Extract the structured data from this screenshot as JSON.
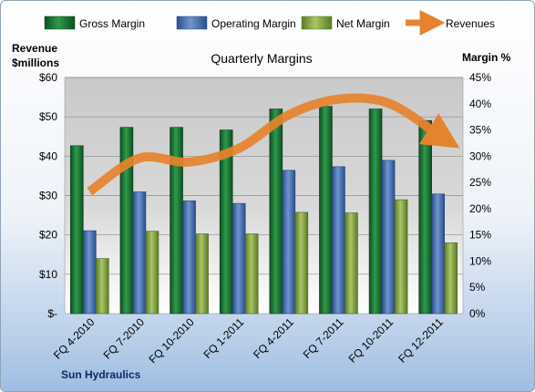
{
  "chart_data": {
    "type": "bar",
    "title": "Quarterly Margins",
    "categories": [
      "FQ 4-2010",
      "FQ 7-2010",
      "FQ 10-2010",
      "FQ 1-2011",
      "FQ 4-2011",
      "FQ 7-2011",
      "FQ 10-2011",
      "FQ 12-2011"
    ],
    "series": [
      {
        "name": "Gross Margin",
        "axis": "right",
        "type": "bar",
        "color": "#1e7d3a",
        "values": [
          32.0,
          35.5,
          35.5,
          35.0,
          39.0,
          39.5,
          39.0,
          36.8
        ]
      },
      {
        "name": "Operating Margin",
        "axis": "right",
        "type": "bar",
        "color": "#4a73b5",
        "values": [
          15.8,
          23.2,
          21.5,
          21.0,
          27.3,
          28.0,
          29.2,
          22.8
        ]
      },
      {
        "name": "Net Margin",
        "axis": "right",
        "type": "bar",
        "color": "#8cab4a",
        "values": [
          10.5,
          15.7,
          15.2,
          15.2,
          19.3,
          19.2,
          21.7,
          13.5
        ]
      },
      {
        "name": "Revenues",
        "axis": "left",
        "type": "line",
        "color": "#e6832e",
        "values": [
          31,
          39.5,
          38.5,
          42,
          50.5,
          54.5,
          53.5,
          45.5
        ]
      }
    ],
    "y_left": {
      "label_line1": "Revenue",
      "label_line2": "$millions",
      "range": [
        0,
        60
      ],
      "ticks": [
        {
          "value": 60,
          "label": "$60"
        },
        {
          "value": 50,
          "label": "$50"
        },
        {
          "value": 40,
          "label": "$40"
        },
        {
          "value": 30,
          "label": "$30"
        },
        {
          "value": 20,
          "label": "$20"
        },
        {
          "value": 10,
          "label": "$10"
        },
        {
          "value": 0,
          "label": "$-"
        }
      ]
    },
    "y_right": {
      "label": "Margin %",
      "range": [
        0,
        45
      ],
      "ticks": [
        "45%",
        "40%",
        "35%",
        "30%",
        "25%",
        "20%",
        "15%",
        "10%",
        "5%",
        "0%"
      ]
    },
    "grid": true,
    "legend_position": "top"
  },
  "source_label": "Sun Hydraulics",
  "colors": {
    "plot_top": "#c9c9c9",
    "plot_bottom": "#ffffff",
    "gross_margin": "#1e7d3a",
    "operating_margin": "#4a73b5",
    "net_margin": "#8cab4a",
    "revenues": "#e6832e"
  }
}
